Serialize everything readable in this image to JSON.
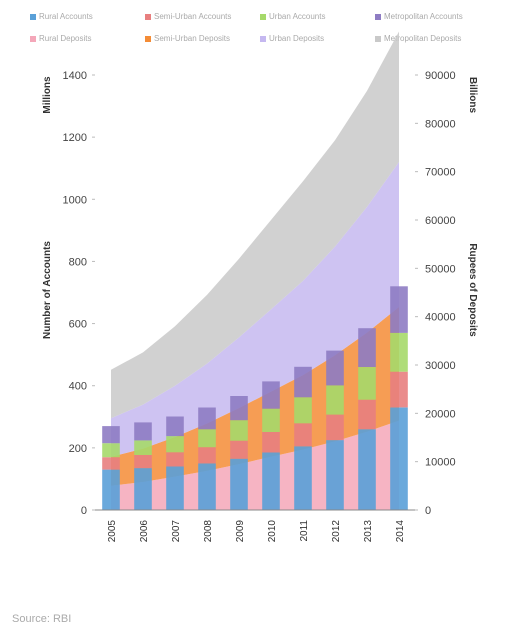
{
  "chart_data": {
    "type": "bar",
    "subtype": "combined stacked bars (accounts) and stacked area (deposits)",
    "categories": [
      "2005",
      "2006",
      "2007",
      "2008",
      "2009",
      "2010",
      "2011",
      "2012",
      "2013",
      "2014"
    ],
    "legend_placement": "top",
    "grid": false,
    "left_axis": {
      "label": "Number of Accounts",
      "unit_label": "Millions",
      "ylim": [
        0,
        1400
      ],
      "ticks": [
        "0",
        "200",
        "400",
        "600",
        "800",
        "1000",
        "1200",
        "1400"
      ]
    },
    "right_axis": {
      "label": "Rupees of Deposits",
      "unit_label": "Billions",
      "ylim": [
        0,
        90000
      ],
      "ticks": [
        "0",
        "10000",
        "20000",
        "30000",
        "40000",
        "50000",
        "60000",
        "70000",
        "80000",
        "90000"
      ]
    },
    "legend": [
      {
        "label": "Rural Accounts",
        "color": "#5aa0d8"
      },
      {
        "label": "Semi-Urban Accounts",
        "color": "#e87f7f"
      },
      {
        "label": "Urban Accounts",
        "color": "#a6d96a"
      },
      {
        "label": "Metropolitan Accounts",
        "color": "#8e7cc3"
      },
      {
        "label": "Rural Deposits",
        "color": "#f4a7b9"
      },
      {
        "label": "Semi-Urban Deposits",
        "color": "#f48c36"
      },
      {
        "label": "Urban Deposits",
        "color": "#c5b8f0"
      },
      {
        "label": "Metropolitan Deposits",
        "color": "#c9c9c9"
      }
    ],
    "account_series": [
      {
        "name": "Rural Accounts",
        "color": "#5aa0d8",
        "values": [
          130,
          135,
          140,
          150,
          165,
          185,
          205,
          225,
          260,
          330
        ]
      },
      {
        "name": "Semi-Urban Accounts",
        "color": "#e87f7f",
        "values": [
          40,
          42,
          46,
          52,
          58,
          66,
          74,
          82,
          95,
          115
        ]
      },
      {
        "name": "Urban Accounts",
        "color": "#a6d96a",
        "values": [
          45,
          47,
          52,
          58,
          66,
          75,
          84,
          94,
          105,
          125
        ]
      },
      {
        "name": "Metropolitan Accounts",
        "color": "#8e7cc3",
        "values": [
          55,
          58,
          63,
          70,
          78,
          88,
          98,
          112,
          125,
          150
        ]
      }
    ],
    "deposit_series": [
      {
        "name": "Rural Deposits",
        "color": "#f4a7b9",
        "values": [
          5000,
          5800,
          6900,
          8100,
          9500,
          11000,
          12500,
          14200,
          16200,
          18500
        ]
      },
      {
        "name": "Semi-Urban Deposits",
        "color": "#f48c36",
        "values": [
          6000,
          6900,
          8200,
          9800,
          11600,
          13500,
          15400,
          17800,
          20500,
          23500
        ]
      },
      {
        "name": "Urban Deposits",
        "color": "#c5b8f0",
        "values": [
          8000,
          9100,
          10600,
          12400,
          14600,
          17000,
          19500,
          22500,
          26000,
          30000
        ]
      },
      {
        "name": "Metropolitan Deposits",
        "color": "#c9c9c9",
        "values": [
          10000,
          10800,
          12300,
          14200,
          16300,
          18500,
          20600,
          22000,
          24000,
          27000
        ]
      }
    ],
    "source_text": "Source: RBI"
  }
}
